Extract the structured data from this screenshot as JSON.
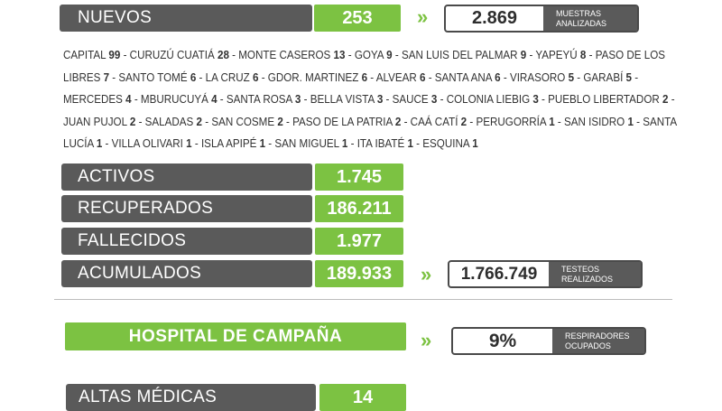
{
  "nuevos": {
    "label": "NUEVOS",
    "value": "253"
  },
  "muestras": {
    "value": "2.869",
    "caption_1": "MUESTRAS",
    "caption_2": "ANALIZADAS"
  },
  "towns": [
    {
      "name": "CAPITAL",
      "count": "99"
    },
    {
      "name": "CURUZÚ CUATIÁ",
      "count": "28"
    },
    {
      "name": "MONTE CASEROS",
      "count": "13"
    },
    {
      "name": "GOYA",
      "count": "9"
    },
    {
      "name": "SAN LUIS DEL PALMAR",
      "count": "9"
    },
    {
      "name": "YAPEYÚ",
      "count": "8"
    },
    {
      "name": "PASO DE LOS LIBRES",
      "count": "7"
    },
    {
      "name": "SANTO TOMÉ",
      "count": "6"
    },
    {
      "name": "LA CRUZ",
      "count": "6"
    },
    {
      "name": "GDOR. MARTINEZ",
      "count": "6"
    },
    {
      "name": "ALVEAR",
      "count": "6"
    },
    {
      "name": "SANTA ANA",
      "count": "6"
    },
    {
      "name": "VIRASORO",
      "count": "5"
    },
    {
      "name": "GARABÍ",
      "count": "5"
    },
    {
      "name": "MERCEDES",
      "count": "4"
    },
    {
      "name": "MBURUCUYÁ",
      "count": "4"
    },
    {
      "name": "SANTA ROSA",
      "count": "3"
    },
    {
      "name": "BELLA VISTA",
      "count": "3"
    },
    {
      "name": "SAUCE",
      "count": "3"
    },
    {
      "name": "COLONIA LIEBIG",
      "count": "3"
    },
    {
      "name": "PUEBLO LIBERTADOR",
      "count": "2"
    },
    {
      "name": "JUAN PUJOL",
      "count": "2"
    },
    {
      "name": "SALADAS",
      "count": "2"
    },
    {
      "name": "SAN COSME",
      "count": "2"
    },
    {
      "name": "PASO DE LA PATRIA",
      "count": "2"
    },
    {
      "name": "CAÁ CATÍ",
      "count": "2"
    },
    {
      "name": "PERUGORRÍA",
      "count": "1"
    },
    {
      "name": "SAN ISIDRO",
      "count": "1"
    },
    {
      "name": "SANTA LUCÍA",
      "count": "1"
    },
    {
      "name": "VILLA OLIVARI",
      "count": "1"
    },
    {
      "name": "ISLA APIPÉ",
      "count": "1"
    },
    {
      "name": "SAN MIGUEL",
      "count": "1"
    },
    {
      "name": "ITA IBATÉ",
      "count": "1"
    },
    {
      "name": "ESQUINA",
      "count": "1"
    }
  ],
  "stats": [
    {
      "label": "ACTIVOS",
      "value": "1.745"
    },
    {
      "label": "RECUPERADOS",
      "value": "186.211"
    },
    {
      "label": "FALLECIDOS",
      "value": "1.977"
    },
    {
      "label": "ACUMULADOS",
      "value": "189.933"
    }
  ],
  "testeos": {
    "value": "1.766.749",
    "caption_1": "TESTEOS",
    "caption_2": "REALIZADOS"
  },
  "hospital": {
    "title": "HOSPITAL DE CAMPAÑA"
  },
  "respiradores": {
    "value": "9%",
    "caption_1": "RESPIRADORES",
    "caption_2": "OCUPADOS"
  },
  "altas": {
    "label": "ALTAS MÉDICAS",
    "value": "14"
  },
  "chevron": "»",
  "colors": {
    "green": "#7cc242",
    "dark": "#5a5a5a"
  }
}
